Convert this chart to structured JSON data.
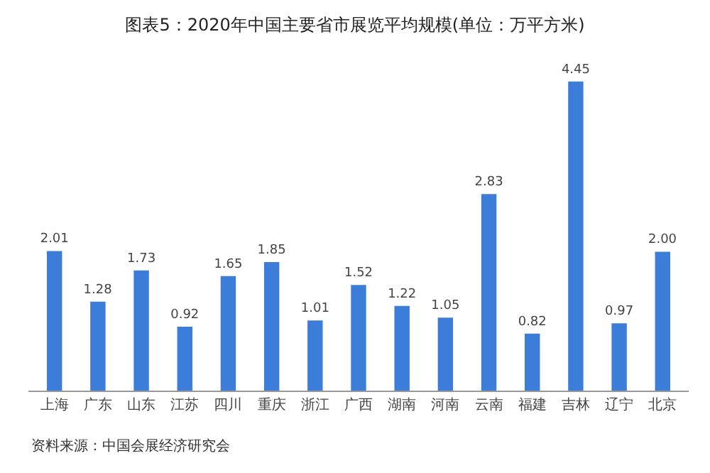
{
  "chart_data": {
    "type": "bar",
    "title": "图表5：2020年中国主要省市展览平均规模(单位：万平方米)",
    "categories": [
      "上海",
      "广东",
      "山东",
      "江苏",
      "四川",
      "重庆",
      "浙江",
      "广西",
      "湖南",
      "河南",
      "云南",
      "福建",
      "吉林",
      "辽宁",
      "北京"
    ],
    "values": [
      2.01,
      1.28,
      1.73,
      0.92,
      1.65,
      1.85,
      1.01,
      1.52,
      1.22,
      1.05,
      2.83,
      0.82,
      4.45,
      0.97,
      2.0
    ],
    "color": "#3b7dd8",
    "value_labels": [
      "2.01",
      "1.28",
      "1.73",
      "0.92",
      "1.65",
      "1.85",
      "1.01",
      "1.52",
      "1.22",
      "1.05",
      "2.83",
      "0.82",
      "4.45",
      "0.97",
      "2.00"
    ],
    "annotations": [
      "资料来源：中国会展经济研究会"
    ]
  }
}
